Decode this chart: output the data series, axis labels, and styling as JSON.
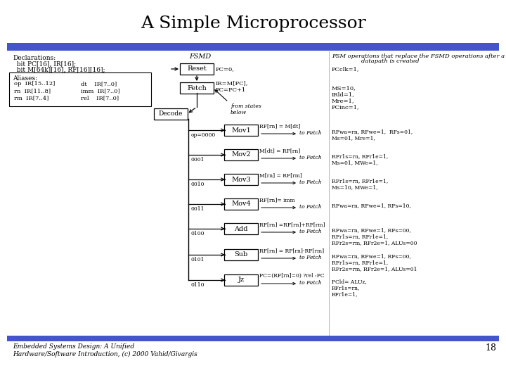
{
  "title": "A Simple Microprocessor",
  "bg_color": "#ffffff",
  "title_color": "#000000",
  "blue_bar_color": "#4455cc",
  "fsmd_label": "FSMD",
  "fsm_header_line1": "FSM operations that replace the FSMD operations after a",
  "fsm_header_line2": "datapath is created",
  "declarations_line1": "Declarations:",
  "declarations_line2": "  bit PC[16], IR[16];",
  "declarations_line3": "  bit M[64k][16], RF[16][16];",
  "aliases_title": "Aliases:",
  "aliases_rows": [
    [
      "op  IR[15..12]",
      "dt    IR[7..0]"
    ],
    [
      "rn  IR[11..8]",
      "imm  IR[7..0]"
    ],
    [
      "rm  IR[7..4]",
      "rel    IR[7..0]"
    ]
  ],
  "footer": "Embedded Systems Design: A Unified\nHardware/Software Introduction, (c) 2000 Vahid/Givargis",
  "page_number": "18",
  "reset_label": "PC=0,",
  "fetch_label": "IR=M[PC],\nPC=PC+1",
  "from_states_label": "from states\nbelow",
  "op_labels": [
    "op=0000",
    "0001",
    "0010",
    "0011",
    "0100",
    "0101",
    "0110"
  ],
  "instr_states": [
    "Mov1",
    "Mov2",
    "Mov3",
    "Mov4",
    "Add",
    "Sub",
    "Jz"
  ],
  "fsmd_ops": [
    "RF[rn] = M[dt]",
    "M[dt] = RF[rn]",
    "M[rn] = RF[rm]",
    "RF[rn]= imm",
    "RF[rn] =RF[rn]+RF[rm]",
    "RF[rn] = RF[rn]-RF[rm]",
    "PC=(RF[rn]=0) ?rel :PC"
  ],
  "fsm_ops_reset": "PCclk=1,",
  "fsm_ops_fetch": "MS=10,\nIRld=1,\nMre=1,\nPCinc=1,",
  "fsm_ops": [
    "RFwa=rn, RFwe=1,  RFs=01,\nMs=01, Mre=1,",
    "RFr1s=rn, RFr1e=1,\nMs=01, MWe=1,",
    "RFr1s=rn, RFr1e=1,\nMs=10, MWe=1,",
    "RFwa=rn, RFwe=1, RFs=10,",
    "RFwa=rn, RFwe=1, RFs=00,\nRFr1s=rn, RFr1e=1,\nRFr2s=rm, RFr2e=1, ALUs=00",
    "RFwa=rn, RFwe=1, RFs=00,\nRFr1s=rn, RFr1e=1,\nRFr2s=rm, RFr2e=1, ALUs=01",
    "PCld= ALUz,\nRFr1s=rn,\nRFr1e=1,"
  ]
}
